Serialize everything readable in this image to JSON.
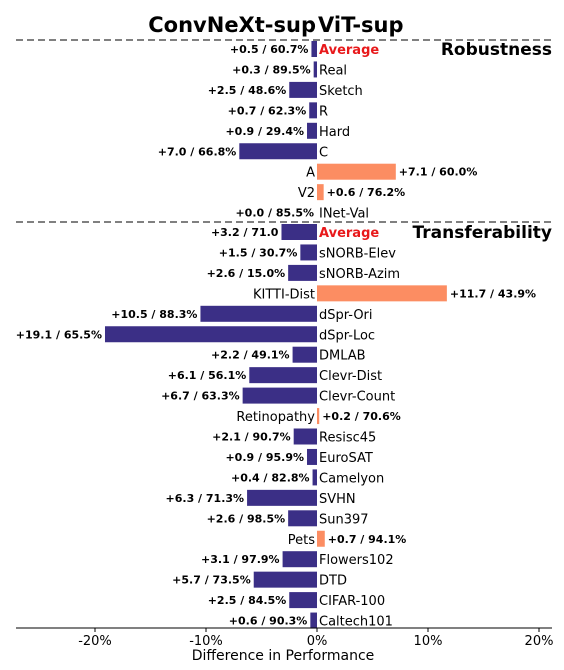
{
  "colors": {
    "convnext": "#3b2f86",
    "vit": "#fc8d62",
    "average": "#e8191b",
    "divider": "#808080"
  },
  "legend": {
    "convnext": "ConvNeXt-sup",
    "vit": "ViT-sup"
  },
  "chart_data": {
    "type": "bar",
    "orientation": "horizontal",
    "xlabel": "Difference in Performance",
    "xlim": [
      -0.19,
      0.2
    ],
    "xticks": [
      {
        "value": -0.2,
        "label": "-20%"
      },
      {
        "value": -0.1,
        "label": "-10%"
      },
      {
        "value": 0.0,
        "label": "0%"
      },
      {
        "value": 0.1,
        "label": "10%"
      },
      {
        "value": 0.2,
        "label": "20%"
      }
    ],
    "sections": [
      {
        "title": "Robustness",
        "rows": [
          {
            "label": "Average",
            "value": -0.5,
            "text": "+0.5 / 60.7%",
            "is_average": true
          },
          {
            "label": "Real",
            "value": -0.3,
            "text": "+0.3 / 89.5%"
          },
          {
            "label": "Sketch",
            "value": -2.5,
            "text": "+2.5 / 48.6%"
          },
          {
            "label": "R",
            "value": -0.7,
            "text": "+0.7 / 62.3%"
          },
          {
            "label": "Hard",
            "value": -0.9,
            "text": "+0.9 / 29.4%"
          },
          {
            "label": "C",
            "value": -7.0,
            "text": "+7.0 / 66.8%"
          },
          {
            "label": "A",
            "value": 7.1,
            "text": "+7.1 / 60.0%"
          },
          {
            "label": "V2",
            "value": 0.6,
            "text": "+0.6 / 76.2%"
          },
          {
            "label": "INet-Val",
            "value": 0.0,
            "text": "+0.0 / 85.5%"
          }
        ]
      },
      {
        "title": "Transferability",
        "rows": [
          {
            "label": "Average",
            "value": -3.2,
            "text": "+3.2 / 71.0",
            "is_average": true
          },
          {
            "label": "sNORB-Elev",
            "value": -1.5,
            "text": "+1.5 / 30.7%"
          },
          {
            "label": "sNORB-Azim",
            "value": -2.6,
            "text": "+2.6 / 15.0%"
          },
          {
            "label": "KITTI-Dist",
            "value": 11.7,
            "text": "+11.7 / 43.9%"
          },
          {
            "label": "dSpr-Ori",
            "value": -10.5,
            "text": "+10.5 / 88.3%"
          },
          {
            "label": "dSpr-Loc",
            "value": -19.1,
            "text": "+19.1 / 65.5%"
          },
          {
            "label": "DMLAB",
            "value": -2.2,
            "text": "+2.2 / 49.1%"
          },
          {
            "label": "Clevr-Dist",
            "value": -6.1,
            "text": "+6.1 / 56.1%"
          },
          {
            "label": "Clevr-Count",
            "value": -6.7,
            "text": "+6.7 / 63.3%"
          },
          {
            "label": "Retinopathy",
            "value": 0.2,
            "text": "+0.2 / 70.6%"
          },
          {
            "label": "Resisc45",
            "value": -2.1,
            "text": "+2.1 / 90.7%"
          },
          {
            "label": "EuroSAT",
            "value": -0.9,
            "text": "+0.9 / 95.9%"
          },
          {
            "label": "Camelyon",
            "value": -0.4,
            "text": "+0.4 / 82.8%"
          },
          {
            "label": "SVHN",
            "value": -6.3,
            "text": "+6.3 / 71.3%"
          },
          {
            "label": "Sun397",
            "value": -2.6,
            "text": "+2.6 / 98.5%"
          },
          {
            "label": "Pets",
            "value": 0.7,
            "text": "+0.7 / 94.1%"
          },
          {
            "label": "Flowers102",
            "value": -3.1,
            "text": "+3.1 / 97.9%"
          },
          {
            "label": "DTD",
            "value": -5.7,
            "text": "+5.7 / 73.5%"
          },
          {
            "label": "CIFAR-100",
            "value": -2.5,
            "text": "+2.5 / 84.5%"
          },
          {
            "label": "Caltech101",
            "value": -0.6,
            "text": "+0.6 / 90.3%"
          }
        ]
      }
    ]
  }
}
